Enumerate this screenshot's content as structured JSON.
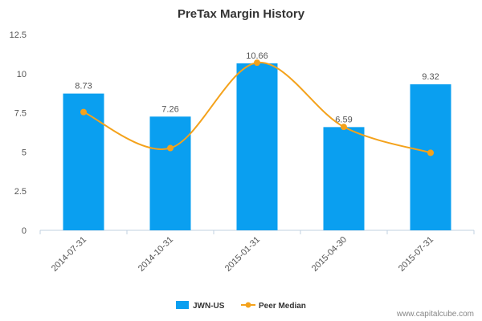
{
  "chart_data": {
    "type": "bar",
    "title": "PreTax Margin History",
    "categories": [
      "2014-07-31",
      "2014-10-31",
      "2015-01-31",
      "2015-04-30",
      "2015-07-31"
    ],
    "series": [
      {
        "name": "JWN-US",
        "kind": "bar",
        "values": [
          8.73,
          7.26,
          10.66,
          6.59,
          9.32
        ],
        "value_labels": [
          "8.73",
          "7.26",
          "10.66",
          "6.59",
          "9.32"
        ],
        "color": "#0a9ff0"
      },
      {
        "name": "Peer Median",
        "kind": "line",
        "values": [
          7.55,
          5.25,
          10.7,
          6.6,
          4.95
        ],
        "color": "#f4a21b"
      }
    ],
    "yticks": [
      "0",
      "2.5",
      "5",
      "7.5",
      "10",
      "12.5"
    ],
    "ylim": [
      0,
      12.5
    ],
    "grid": false,
    "legend_position": "bottom-center"
  },
  "watermark": "www.capitalcube.com"
}
